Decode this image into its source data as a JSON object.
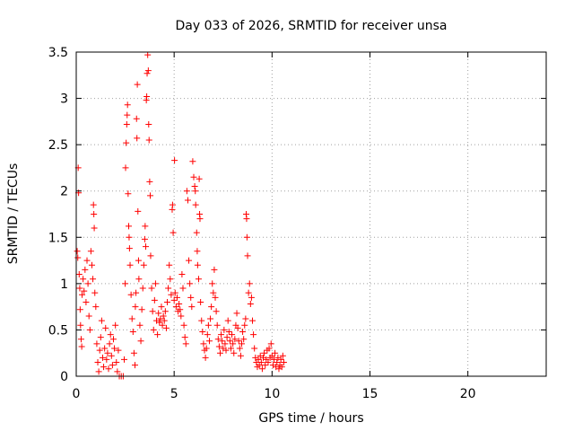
{
  "chart_data": {
    "type": "scatter",
    "title": "Day 033 of 2026, SRMTID for receiver unsa",
    "xlabel": "GPS time / hours",
    "ylabel": "SRMTID / TECUs",
    "xlim": [
      0,
      24
    ],
    "ylim": [
      0,
      3.5
    ],
    "xticks": [
      0,
      5,
      10,
      15,
      20
    ],
    "xtick_labels": [
      "0",
      "5",
      "10",
      "15",
      "20"
    ],
    "yticks": [
      0,
      0.5,
      1,
      1.5,
      2,
      2.5,
      3,
      3.5
    ],
    "ytick_labels": [
      "0",
      "0.5",
      "1",
      "1.5",
      "2",
      "2.5",
      "3",
      "3.5"
    ],
    "grid": true,
    "legend": false,
    "marker": "plus",
    "color": "#ff0000",
    "series": [
      {
        "name": "SRMTID",
        "points": [
          [
            0.05,
            1.35
          ],
          [
            0.08,
            1.28
          ],
          [
            0.1,
            2.25
          ],
          [
            0.12,
            1.98
          ],
          [
            0.15,
            1.1
          ],
          [
            0.18,
            0.95
          ],
          [
            0.2,
            0.72
          ],
          [
            0.22,
            0.55
          ],
          [
            0.25,
            0.4
          ],
          [
            0.28,
            0.32
          ],
          [
            0.3,
            0.88
          ],
          [
            0.35,
            1.05
          ],
          [
            0.4,
            0.92
          ],
          [
            0.45,
            1.15
          ],
          [
            0.5,
            0.8
          ],
          [
            0.55,
            1.25
          ],
          [
            0.6,
            1.0
          ],
          [
            0.65,
            0.65
          ],
          [
            0.7,
            0.5
          ],
          [
            0.75,
            1.35
          ],
          [
            0.8,
            1.2
          ],
          [
            0.85,
            1.05
          ],
          [
            0.88,
            1.85
          ],
          [
            0.9,
            1.75
          ],
          [
            0.92,
            1.6
          ],
          [
            0.95,
            0.9
          ],
          [
            1.0,
            0.75
          ],
          [
            1.05,
            0.35
          ],
          [
            1.1,
            0.15
          ],
          [
            1.15,
            0.05
          ],
          [
            1.2,
            0.28
          ],
          [
            1.25,
            0.42
          ],
          [
            1.3,
            0.6
          ],
          [
            1.35,
            0.2
          ],
          [
            1.4,
            0.1
          ],
          [
            1.45,
            0.3
          ],
          [
            1.5,
            0.52
          ],
          [
            1.55,
            0.18
          ],
          [
            1.6,
            0.25
          ],
          [
            1.65,
            0.08
          ],
          [
            1.7,
            0.35
          ],
          [
            1.75,
            0.45
          ],
          [
            1.8,
            0.22
          ],
          [
            1.85,
            0.12
          ],
          [
            1.9,
            0.4
          ],
          [
            1.95,
            0.3
          ],
          [
            2.0,
            0.55
          ],
          [
            2.05,
            0.15
          ],
          [
            2.1,
            0.05
          ],
          [
            2.15,
            0.28
          ],
          [
            2.2,
            0.0
          ],
          [
            2.3,
            0.0
          ],
          [
            2.4,
            0.0
          ],
          [
            2.45,
            0.18
          ],
          [
            2.5,
            1.0
          ],
          [
            2.52,
            2.25
          ],
          [
            2.55,
            2.52
          ],
          [
            2.58,
            2.72
          ],
          [
            2.6,
            2.82
          ],
          [
            2.62,
            2.93
          ],
          [
            2.65,
            1.97
          ],
          [
            2.68,
            1.62
          ],
          [
            2.7,
            1.5
          ],
          [
            2.72,
            1.38
          ],
          [
            2.75,
            1.2
          ],
          [
            2.8,
            0.88
          ],
          [
            2.85,
            0.62
          ],
          [
            2.9,
            0.48
          ],
          [
            2.95,
            0.25
          ],
          [
            3.0,
            0.12
          ],
          [
            3.02,
            0.75
          ],
          [
            3.05,
            0.9
          ],
          [
            3.08,
            2.78
          ],
          [
            3.1,
            2.57
          ],
          [
            3.12,
            3.15
          ],
          [
            3.15,
            1.78
          ],
          [
            3.18,
            1.25
          ],
          [
            3.2,
            1.05
          ],
          [
            3.25,
            0.55
          ],
          [
            3.3,
            0.38
          ],
          [
            3.35,
            0.72
          ],
          [
            3.4,
            0.95
          ],
          [
            3.45,
            1.2
          ],
          [
            3.5,
            1.48
          ],
          [
            3.52,
            1.62
          ],
          [
            3.55,
            1.4
          ],
          [
            3.58,
            2.98
          ],
          [
            3.6,
            3.02
          ],
          [
            3.62,
            3.27
          ],
          [
            3.65,
            3.47
          ],
          [
            3.68,
            3.3
          ],
          [
            3.7,
            2.72
          ],
          [
            3.72,
            2.55
          ],
          [
            3.75,
            2.1
          ],
          [
            3.78,
            1.95
          ],
          [
            3.8,
            1.3
          ],
          [
            3.85,
            0.95
          ],
          [
            3.9,
            0.7
          ],
          [
            3.95,
            0.5
          ],
          [
            4.0,
            0.82
          ],
          [
            4.05,
            1.0
          ],
          [
            4.1,
            0.6
          ],
          [
            4.15,
            0.45
          ],
          [
            4.2,
            0.68
          ],
          [
            4.25,
            0.58
          ],
          [
            4.3,
            0.62
          ],
          [
            4.35,
            0.75
          ],
          [
            4.4,
            0.55
          ],
          [
            4.45,
            0.65
          ],
          [
            4.5,
            0.6
          ],
          [
            4.55,
            0.7
          ],
          [
            4.6,
            0.52
          ],
          [
            4.65,
            0.8
          ],
          [
            4.7,
            0.95
          ],
          [
            4.75,
            1.2
          ],
          [
            4.8,
            1.05
          ],
          [
            4.85,
            0.88
          ],
          [
            4.9,
            1.8
          ],
          [
            4.92,
            1.85
          ],
          [
            4.95,
            1.55
          ],
          [
            5.0,
            0.82
          ],
          [
            5.02,
            2.33
          ],
          [
            5.05,
            0.9
          ],
          [
            5.1,
            0.75
          ],
          [
            5.15,
            0.85
          ],
          [
            5.2,
            0.7
          ],
          [
            5.25,
            0.78
          ],
          [
            5.3,
            0.72
          ],
          [
            5.35,
            0.65
          ],
          [
            5.4,
            1.1
          ],
          [
            5.45,
            0.95
          ],
          [
            5.5,
            0.55
          ],
          [
            5.55,
            0.42
          ],
          [
            5.6,
            0.35
          ],
          [
            5.65,
            2.0
          ],
          [
            5.7,
            1.9
          ],
          [
            5.75,
            1.25
          ],
          [
            5.8,
            1.0
          ],
          [
            5.85,
            0.85
          ],
          [
            5.9,
            0.75
          ],
          [
            5.95,
            2.32
          ],
          [
            6.0,
            2.15
          ],
          [
            6.05,
            2.05
          ],
          [
            6.08,
            2.0
          ],
          [
            6.1,
            1.85
          ],
          [
            6.15,
            1.55
          ],
          [
            6.18,
            1.35
          ],
          [
            6.2,
            1.2
          ],
          [
            6.25,
            1.05
          ],
          [
            6.28,
            2.13
          ],
          [
            6.3,
            1.75
          ],
          [
            6.32,
            1.7
          ],
          [
            6.35,
            0.8
          ],
          [
            6.4,
            0.6
          ],
          [
            6.45,
            0.48
          ],
          [
            6.5,
            0.35
          ],
          [
            6.55,
            0.28
          ],
          [
            6.6,
            0.2
          ],
          [
            6.65,
            0.3
          ],
          [
            6.7,
            0.45
          ],
          [
            6.75,
            0.55
          ],
          [
            6.8,
            0.38
          ],
          [
            6.85,
            0.62
          ],
          [
            6.9,
            0.75
          ],
          [
            6.95,
            1.0
          ],
          [
            7.0,
            0.9
          ],
          [
            7.05,
            1.15
          ],
          [
            7.1,
            0.85
          ],
          [
            7.15,
            0.7
          ],
          [
            7.2,
            0.55
          ],
          [
            7.25,
            0.4
          ],
          [
            7.3,
            0.32
          ],
          [
            7.35,
            0.25
          ],
          [
            7.4,
            0.45
          ],
          [
            7.45,
            0.38
          ],
          [
            7.5,
            0.3
          ],
          [
            7.55,
            0.5
          ],
          [
            7.6,
            0.35
          ],
          [
            7.65,
            0.28
          ],
          [
            7.7,
            0.42
          ],
          [
            7.75,
            0.6
          ],
          [
            7.8,
            0.48
          ],
          [
            7.85,
            0.38
          ],
          [
            7.9,
            0.3
          ],
          [
            7.95,
            0.45
          ],
          [
            8.0,
            0.35
          ],
          [
            8.05,
            0.25
          ],
          [
            8.1,
            0.4
          ],
          [
            8.15,
            0.55
          ],
          [
            8.2,
            0.68
          ],
          [
            8.25,
            0.52
          ],
          [
            8.3,
            0.38
          ],
          [
            8.35,
            0.3
          ],
          [
            8.4,
            0.22
          ],
          [
            8.45,
            0.35
          ],
          [
            8.5,
            0.48
          ],
          [
            8.55,
            0.4
          ],
          [
            8.6,
            0.55
          ],
          [
            8.65,
            0.62
          ],
          [
            8.68,
            1.75
          ],
          [
            8.7,
            1.7
          ],
          [
            8.72,
            1.5
          ],
          [
            8.75,
            1.3
          ],
          [
            8.8,
            0.9
          ],
          [
            8.85,
            1.0
          ],
          [
            8.9,
            0.78
          ],
          [
            8.95,
            0.85
          ],
          [
            9.0,
            0.6
          ],
          [
            9.05,
            0.45
          ],
          [
            9.1,
            0.3
          ],
          [
            9.15,
            0.2
          ],
          [
            9.2,
            0.15
          ],
          [
            9.25,
            0.1
          ],
          [
            9.3,
            0.18
          ],
          [
            9.35,
            0.12
          ],
          [
            9.4,
            0.22
          ],
          [
            9.45,
            0.15
          ],
          [
            9.5,
            0.08
          ],
          [
            9.55,
            0.2
          ],
          [
            9.6,
            0.25
          ],
          [
            9.65,
            0.12
          ],
          [
            9.7,
            0.18
          ],
          [
            9.75,
            0.28
          ],
          [
            9.8,
            0.15
          ],
          [
            9.85,
            0.3
          ],
          [
            9.9,
            0.2
          ],
          [
            9.95,
            0.35
          ],
          [
            10.0,
            0.22
          ],
          [
            10.05,
            0.12
          ],
          [
            10.1,
            0.18
          ],
          [
            10.15,
            0.25
          ],
          [
            10.2,
            0.1
          ],
          [
            10.25,
            0.15
          ],
          [
            10.3,
            0.2
          ],
          [
            10.35,
            0.08
          ],
          [
            10.4,
            0.12
          ],
          [
            10.45,
            0.18
          ],
          [
            10.5,
            0.1
          ],
          [
            10.55,
            0.22
          ],
          [
            10.6,
            0.15
          ]
        ]
      }
    ]
  }
}
